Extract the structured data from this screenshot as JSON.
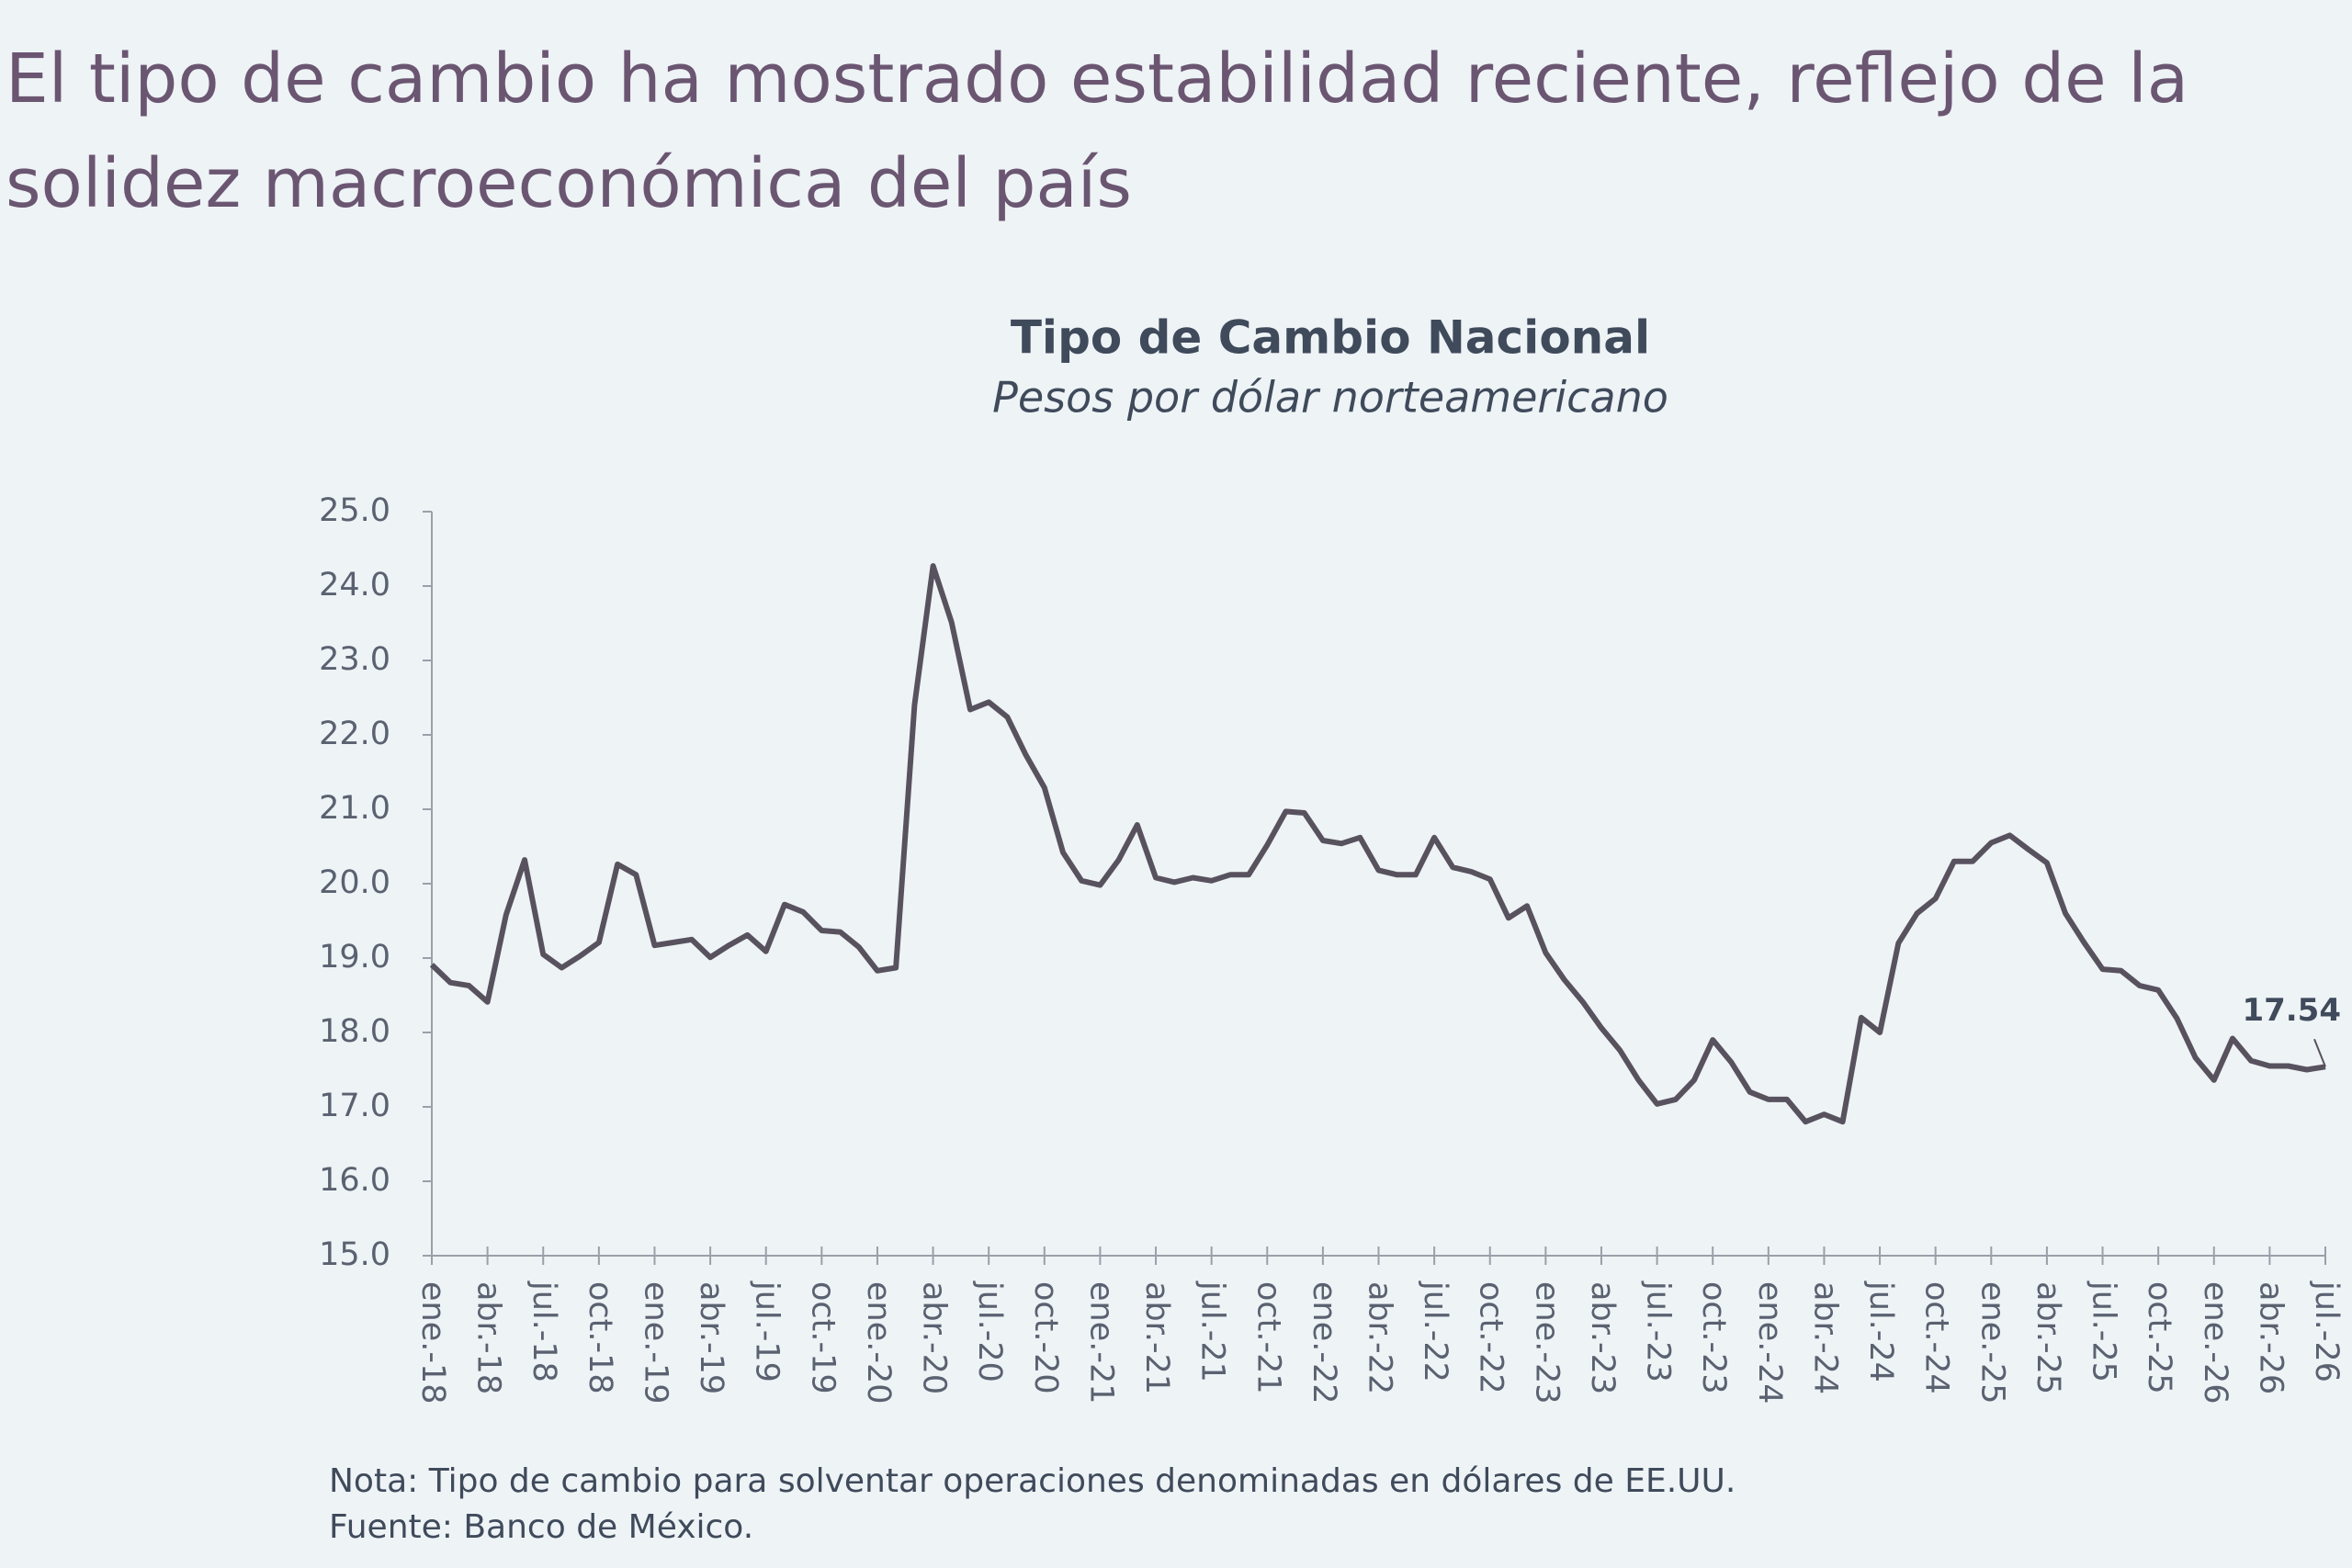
{
  "chart_data": {
    "type": "line",
    "headline": "El tipo de cambio ha mostrado estabilidad reciente, reflejo de la solidez macroeconómica del país",
    "title": "Tipo de Cambio Nacional",
    "subtitle": "Pesos por dólar norteamericano",
    "note": "Nota: Tipo de cambio para solventar operaciones denominadas en dólares de EE.UU.",
    "source": "Fuente: Banco de México.",
    "categories": [
      "ene.-18",
      null,
      null,
      "abr.-18",
      null,
      null,
      "jul.-18",
      null,
      null,
      "oct.-18",
      null,
      null,
      "ene.-19",
      null,
      null,
      "abr.-19",
      null,
      null,
      "jul.-19",
      null,
      null,
      "oct.-19",
      null,
      null,
      "ene.-20",
      null,
      null,
      "abr.-20",
      null,
      null,
      "jul.-20",
      null,
      null,
      "oct.-20",
      null,
      null,
      "ene.-21",
      null,
      null,
      "abr.-21",
      null,
      null,
      "jul.-21",
      null,
      null,
      "oct.-21",
      null,
      null,
      "ene.-22",
      null,
      null,
      "abr.-22",
      null,
      null,
      "jul.-22",
      null,
      null,
      "oct.-22",
      null,
      null,
      "ene.-23",
      null,
      null,
      "abr.-23",
      null,
      null,
      "jul.-23",
      null,
      null,
      "oct.-23",
      null,
      null,
      "ene.-24",
      null,
      null,
      "abr.-24",
      null,
      null,
      "jul.-24",
      null,
      null,
      "oct.-24",
      null,
      null,
      "ene.-25",
      null,
      null,
      "abr.-25",
      null,
      null,
      "jul.-25",
      null,
      null,
      "oct.-25",
      null,
      null,
      "ene.-26",
      null,
      null,
      "abr.-26",
      null,
      null,
      "jul.-26"
    ],
    "values": [
      18.91,
      18.67,
      18.63,
      18.41,
      19.58,
      20.32,
      19.05,
      18.87,
      19.03,
      19.21,
      20.26,
      20.12,
      19.17,
      19.21,
      19.25,
      19.01,
      19.17,
      19.31,
      19.09,
      19.72,
      19.62,
      19.37,
      19.35,
      19.15,
      18.83,
      18.87,
      22.4,
      24.27,
      23.51,
      22.34,
      22.44,
      22.24,
      21.73,
      21.29,
      20.42,
      20.04,
      19.98,
      20.32,
      20.79,
      20.08,
      20.02,
      20.08,
      20.04,
      20.12,
      20.12,
      20.52,
      20.97,
      20.95,
      20.58,
      20.54,
      20.62,
      20.18,
      20.12,
      20.12,
      20.62,
      20.22,
      20.16,
      20.06,
      19.54,
      19.7,
      19.07,
      18.71,
      18.41,
      18.06,
      17.76,
      17.36,
      17.04,
      17.1,
      17.36,
      17.9,
      17.6,
      17.2,
      17.1,
      17.1,
      16.8,
      16.9,
      16.8,
      18.2,
      18.0,
      19.2,
      19.6,
      19.8,
      20.3,
      20.3,
      20.55,
      20.65,
      20.46,
      20.28,
      19.6,
      19.21,
      18.85,
      18.83,
      18.63,
      18.57,
      18.19,
      17.66,
      17.36,
      17.92,
      17.62,
      17.55,
      17.55,
      17.5,
      17.54
    ],
    "color": "#58525f",
    "ylim": [
      15,
      25
    ],
    "yticks": [
      {
        "value": 15,
        "label": "15.0"
      },
      {
        "value": 16,
        "label": "16.0"
      },
      {
        "value": 17,
        "label": "17.0"
      },
      {
        "value": 18,
        "label": "18.0"
      },
      {
        "value": 19,
        "label": "19.0"
      },
      {
        "value": 20,
        "label": "20.0"
      },
      {
        "value": 21,
        "label": "21.0"
      },
      {
        "value": 22,
        "label": "22.0"
      },
      {
        "value": 23,
        "label": "23.0"
      },
      {
        "value": 24,
        "label": "24.0"
      },
      {
        "value": 25,
        "label": "25.0"
      }
    ],
    "grid": false
  }
}
